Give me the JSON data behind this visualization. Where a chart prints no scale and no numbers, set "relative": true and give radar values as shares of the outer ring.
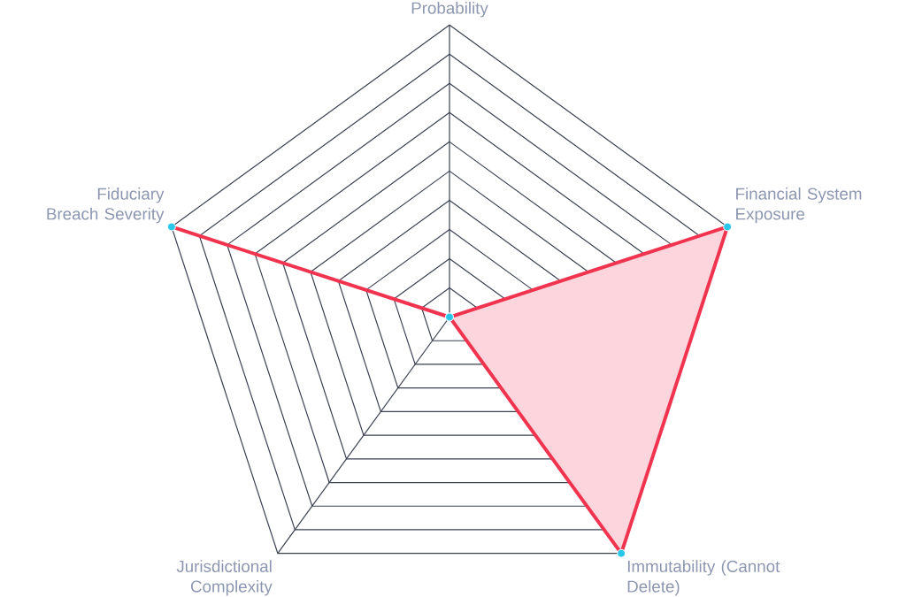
{
  "chart_data": {
    "type": "radar",
    "relative": true,
    "grid": true,
    "marker": "circle",
    "categories": [
      "Probability",
      "Financial System Exposure",
      "Immutability (Cannot Delete)",
      "Jurisdictional Complexity",
      "Fiduciary Breach Severity"
    ],
    "series": [
      {
        "color": "#f0344f",
        "values": [
          0,
          1,
          1,
          0,
          1
        ]
      }
    ]
  }
}
